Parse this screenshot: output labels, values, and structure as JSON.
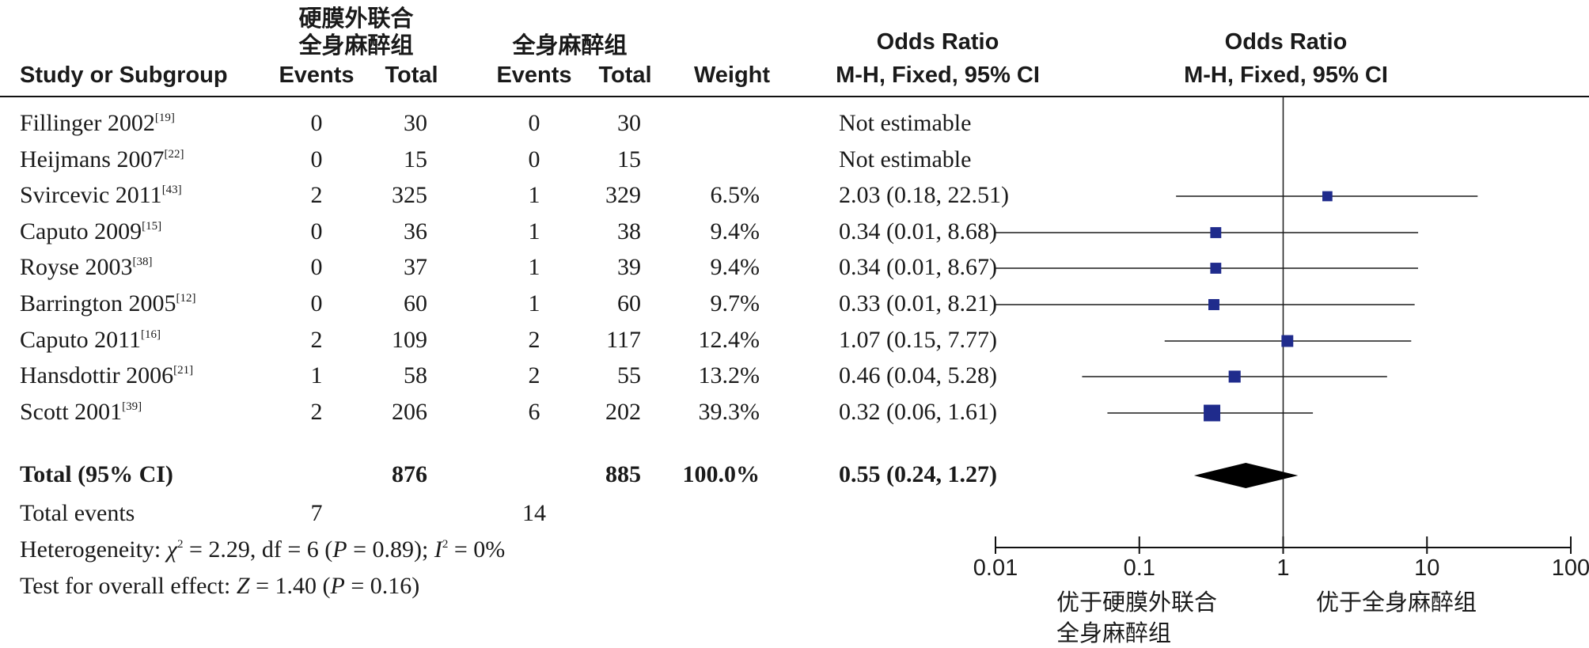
{
  "chart_data": {
    "type": "forest",
    "header": {
      "group1_name_line1": "硬膜外联合",
      "group1_name_line2": "全身麻醉组",
      "group2_name": "全身麻醉组",
      "col_study": "Study or Subgroup",
      "col_events": "Events",
      "col_total": "Total",
      "col_weight": "Weight",
      "or_title": "Odds Ratio",
      "or_method": "M-H, Fixed, 95% CI"
    },
    "studies": [
      {
        "name": "Fillinger 2002",
        "ref": "[19]",
        "e1": "0",
        "t1": "30",
        "e2": "0",
        "t2": "30",
        "weight": "",
        "ci_text": "Not estimable",
        "or": null,
        "lo": null,
        "hi": null
      },
      {
        "name": "Heijmans 2007",
        "ref": "[22]",
        "e1": "0",
        "t1": "15",
        "e2": "0",
        "t2": "15",
        "weight": "",
        "ci_text": "Not estimable",
        "or": null,
        "lo": null,
        "hi": null
      },
      {
        "name": "Svircevic 2011",
        "ref": "[43]",
        "e1": "2",
        "t1": "325",
        "e2": "1",
        "t2": "329",
        "weight": "6.5%",
        "ci_text": "2.03 (0.18, 22.51)",
        "or": 2.03,
        "lo": 0.18,
        "hi": 22.51
      },
      {
        "name": "Caputo 2009",
        "ref": "[15]",
        "e1": "0",
        "t1": "36",
        "e2": "1",
        "t2": "38",
        "weight": "9.4%",
        "ci_text": "0.34 (0.01, 8.68)",
        "or": 0.34,
        "lo": 0.01,
        "hi": 8.68
      },
      {
        "name": "Royse 2003",
        "ref": "[38]",
        "e1": "0",
        "t1": "37",
        "e2": "1",
        "t2": "39",
        "weight": "9.4%",
        "ci_text": "0.34 (0.01, 8.67)",
        "or": 0.34,
        "lo": 0.01,
        "hi": 8.67
      },
      {
        "name": "Barrington 2005",
        "ref": "[12]",
        "e1": "0",
        "t1": "60",
        "e2": "1",
        "t2": "60",
        "weight": "9.7%",
        "ci_text": "0.33 (0.01, 8.21)",
        "or": 0.33,
        "lo": 0.01,
        "hi": 8.21
      },
      {
        "name": "Caputo 2011",
        "ref": "[16]",
        "e1": "2",
        "t1": "109",
        "e2": "2",
        "t2": "117",
        "weight": "12.4%",
        "ci_text": "1.07 (0.15, 7.77)",
        "or": 1.07,
        "lo": 0.15,
        "hi": 7.77
      },
      {
        "name": "Hansdottir 2006",
        "ref": "[21]",
        "e1": "1",
        "t1": "58",
        "e2": "2",
        "t2": "55",
        "weight": "13.2%",
        "ci_text": "0.46 (0.04, 5.28)",
        "or": 0.46,
        "lo": 0.04,
        "hi": 5.28
      },
      {
        "name": "Scott 2001",
        "ref": "[39]",
        "e1": "2",
        "t1": "206",
        "e2": "6",
        "t2": "202",
        "weight": "39.3%",
        "ci_text": "0.32 (0.06, 1.61)",
        "or": 0.32,
        "lo": 0.06,
        "hi": 1.61
      }
    ],
    "total": {
      "label": "Total (95% CI)",
      "t1": "876",
      "t2": "885",
      "weight": "100.0%",
      "ci_text": "0.55 (0.24, 1.27)",
      "or": 0.55,
      "lo": 0.24,
      "hi": 1.27
    },
    "total_events": {
      "label": "Total events",
      "e1": "7",
      "e2": "14"
    },
    "heterogeneity": {
      "label": "Heterogeneity: ",
      "chi": "χ",
      "chi_sup": "2",
      "text1": " = 2.29, df = 6 (",
      "p_sym": "P",
      "text2": " = 0.89); ",
      "i_sym": "I",
      "i_sup": "2",
      "text3": " = 0%"
    },
    "overall": {
      "label": "Test for overall effect: ",
      "z_sym": "Z",
      "text1": " = 1.40 (",
      "p_sym": "P",
      "text2": " = 0.16)"
    },
    "axis": {
      "scale": "log",
      "range": [
        0.01,
        100
      ],
      "ticks": [
        0.01,
        0.1,
        1,
        10,
        100
      ],
      "tick_labels": [
        "0.01",
        "0.1",
        "1",
        "10",
        "100"
      ]
    },
    "favours_left_line1": "优于硬膜外联合",
    "favours_left_line2": "全身麻醉组",
    "favours_right": "优于全身麻醉组",
    "colors": {
      "square": "#1f2b8c",
      "diamond": "#000000",
      "line": "#1a1a1a"
    }
  }
}
